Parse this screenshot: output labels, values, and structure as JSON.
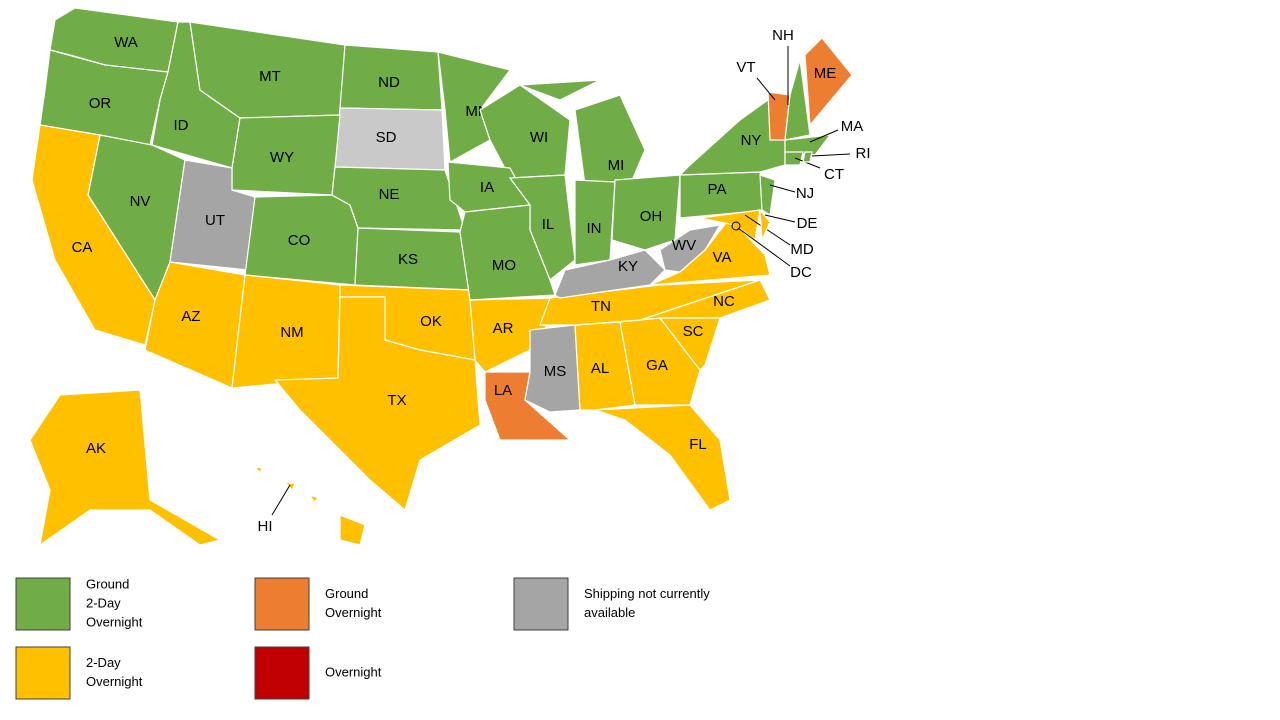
{
  "states": [
    {
      "label": "WA",
      "color": "#70ad47"
    },
    {
      "label": "OR",
      "color": "#70ad47"
    },
    {
      "label": "ID",
      "color": "#70ad47"
    },
    {
      "label": "MT",
      "color": "#70ad47"
    },
    {
      "label": "ND",
      "color": "#70ad47"
    },
    {
      "label": "SD",
      "color": "#c9c9c9"
    },
    {
      "label": "WY",
      "color": "#70ad47"
    },
    {
      "label": "NV",
      "color": "#70ad47"
    },
    {
      "label": "CA",
      "color": "#ffc000"
    },
    {
      "label": "UT",
      "color": "#a5a5a5"
    },
    {
      "label": "CO",
      "color": "#70ad47"
    },
    {
      "label": "AZ",
      "color": "#ffc000"
    },
    {
      "label": "NM",
      "color": "#ffc000"
    },
    {
      "label": "NE",
      "color": "#70ad47"
    },
    {
      "label": "KS",
      "color": "#70ad47"
    },
    {
      "label": "OK",
      "color": "#ffc000"
    },
    {
      "label": "TX",
      "color": "#ffc000"
    },
    {
      "label": "MN",
      "color": "#70ad47"
    },
    {
      "label": "WI",
      "color": "#70ad47"
    },
    {
      "label": "MI",
      "color": "#70ad47"
    },
    {
      "label": "IA",
      "color": "#70ad47"
    },
    {
      "label": "IL",
      "color": "#70ad47"
    },
    {
      "label": "IN",
      "color": "#70ad47"
    },
    {
      "label": "OH",
      "color": "#70ad47"
    },
    {
      "label": "MO",
      "color": "#70ad47"
    },
    {
      "label": "AR",
      "color": "#ffc000"
    },
    {
      "label": "LA",
      "color": "#ed7d31"
    },
    {
      "label": "MS",
      "color": "#a5a5a5"
    },
    {
      "label": "AL",
      "color": "#ffc000"
    },
    {
      "label": "GA",
      "color": "#ffc000"
    },
    {
      "label": "FL",
      "color": "#ffc000"
    },
    {
      "label": "SC",
      "color": "#ffc000"
    },
    {
      "label": "NC",
      "color": "#ffc000"
    },
    {
      "label": "TN",
      "color": "#ffc000"
    },
    {
      "label": "KY",
      "color": "#a5a5a5"
    },
    {
      "label": "WV",
      "color": "#a5a5a5"
    },
    {
      "label": "VA",
      "color": "#ffc000"
    },
    {
      "label": "PA",
      "color": "#70ad47"
    },
    {
      "label": "NY",
      "color": "#70ad47"
    },
    {
      "label": "NJ",
      "color": "#70ad47"
    },
    {
      "label": "MD",
      "color": "#ffc000"
    },
    {
      "label": "DE",
      "color": "#ffc000"
    },
    {
      "label": "VT",
      "color": "#ed7d31"
    },
    {
      "label": "NH",
      "color": "#70ad47"
    },
    {
      "label": "ME",
      "color": "#ed7d31"
    },
    {
      "label": "MA",
      "color": "#70ad47"
    },
    {
      "label": "CT",
      "color": "#70ad47"
    },
    {
      "label": "RI",
      "color": "#70ad47"
    },
    {
      "label": "AK",
      "color": "#ffc000"
    },
    {
      "label": "HI",
      "color": "#ffc000"
    },
    {
      "label": "DC",
      "color": "#ffc000"
    }
  ],
  "legend": [
    {
      "lines": [
        "Ground",
        "2-Day",
        "Overnight"
      ],
      "color": "#70ad47"
    },
    {
      "lines": [
        "Ground",
        "Overnight"
      ],
      "color": "#ed7d31"
    },
    {
      "lines": [
        "Shipping not currently",
        "available"
      ],
      "color": "#a5a5a5"
    },
    {
      "lines": [
        "2-Day",
        "Overnight"
      ],
      "color": "#ffc000"
    },
    {
      "lines": [
        "Overnight"
      ],
      "color": "#c00000"
    }
  ]
}
